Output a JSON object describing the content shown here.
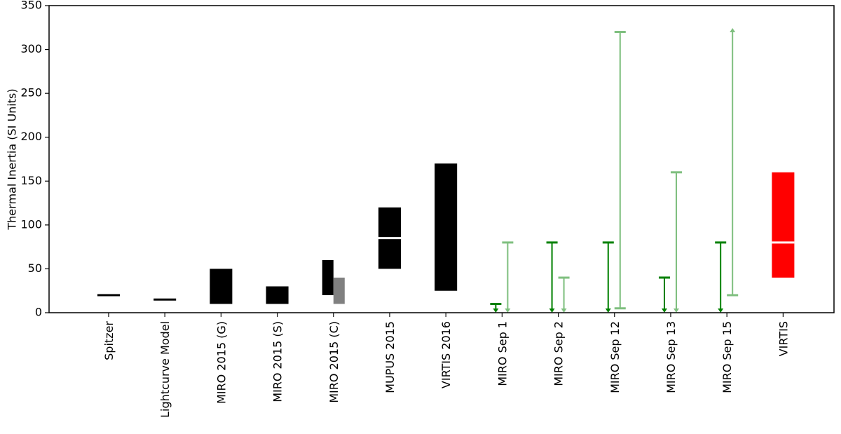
{
  "chart_data": {
    "type": "range",
    "y_label": "Thermal Inertia (SI Units)",
    "categories": [
      "Spitzer",
      "Lightcurve Model",
      "MIRO 2015 (G)",
      "MIRO 2015 (S)",
      "MIRO 2015 (C)",
      "MUPUS 2015",
      "VIRTIS 2016",
      "MIRO Sep 1",
      "MIRO Sep 2",
      "MIRO Sep 12",
      "MIRO Sep 13",
      "MIRO Sep 15",
      "VIRTIS"
    ],
    "ylim": [
      0,
      350
    ],
    "yticks": [
      0,
      50,
      100,
      150,
      200,
      250,
      300,
      350
    ],
    "ranges": [
      {
        "color": "#000000",
        "low": [
          null,
          null,
          10,
          10,
          20,
          50,
          25,
          null,
          null,
          null,
          null,
          null,
          null
        ],
        "high": [
          null,
          null,
          50,
          30,
          60,
          120,
          170,
          null,
          null,
          null,
          null,
          null,
          null
        ]
      },
      {
        "color": "#808080",
        "low": [
          null,
          null,
          null,
          null,
          10,
          null,
          null,
          null,
          null,
          null,
          null,
          null,
          null
        ],
        "high": [
          null,
          null,
          null,
          null,
          40,
          null,
          null,
          null,
          null,
          null,
          null,
          null,
          null
        ]
      },
      {
        "color": "#ff0000",
        "low": [
          null,
          null,
          null,
          null,
          null,
          null,
          null,
          null,
          null,
          null,
          null,
          null,
          40
        ],
        "high": [
          null,
          null,
          null,
          null,
          null,
          null,
          null,
          null,
          null,
          null,
          null,
          null,
          160
        ]
      }
    ],
    "markers": [
      {
        "color": "#000000",
        "values": [
          20,
          15,
          null,
          null,
          null,
          null,
          null,
          null,
          null,
          null,
          null,
          null,
          null
        ]
      },
      {
        "color": "#ffffff",
        "values": [
          null,
          null,
          null,
          null,
          null,
          85,
          null,
          null,
          null,
          null,
          null,
          null,
          80
        ]
      }
    ],
    "limits": [
      {
        "color": "#008000",
        "upper": [
          null,
          null,
          null,
          null,
          null,
          null,
          null,
          10,
          80,
          80,
          40,
          80,
          null
        ],
        "lower": [
          null,
          null,
          null,
          null,
          null,
          null,
          null,
          null,
          null,
          null,
          null,
          null,
          null
        ]
      },
      {
        "color": "#7fbf7f",
        "upper": [
          null,
          null,
          null,
          null,
          null,
          null,
          null,
          80,
          40,
          320,
          160,
          null,
          null
        ],
        "lower": [
          null,
          null,
          null,
          null,
          null,
          null,
          null,
          null,
          null,
          5,
          null,
          20,
          null
        ]
      }
    ]
  }
}
